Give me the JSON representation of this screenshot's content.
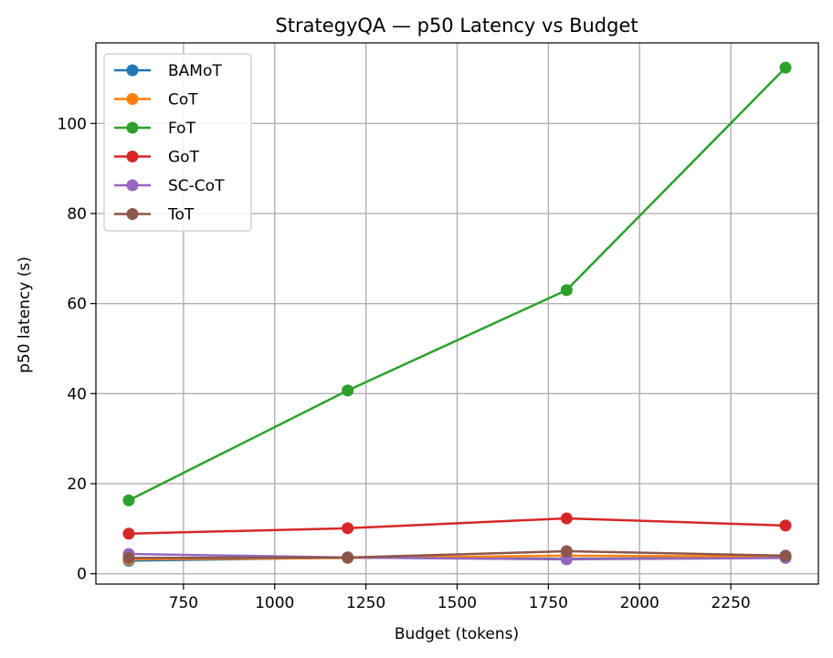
{
  "chart_data": {
    "type": "line",
    "title": "StrategyQA — p50 Latency vs Budget",
    "xlabel": "Budget (tokens)",
    "ylabel": "p50 latency (s)",
    "x": [
      600,
      1200,
      1800,
      2400
    ],
    "xlim": [
      510,
      2490
    ],
    "ylim": [
      -2.3,
      117.9
    ],
    "xticks": [
      750,
      1000,
      1250,
      1500,
      1750,
      2000,
      2250
    ],
    "yticks": [
      0,
      20,
      40,
      60,
      80,
      100
    ],
    "grid": true,
    "legend_position": "upper-left",
    "series": [
      {
        "name": "BAMoT",
        "color": "#1f77b4",
        "values": [
          2.9,
          3.6,
          3.3,
          3.6
        ]
      },
      {
        "name": "CoT",
        "color": "#ff7f0e",
        "values": [
          3.2,
          3.5,
          4.0,
          3.8
        ]
      },
      {
        "name": "FoT",
        "color": "#2ca02c",
        "values": [
          16.3,
          40.7,
          63.0,
          112.4
        ]
      },
      {
        "name": "GoT",
        "color": "#d62728",
        "values": [
          8.9,
          10.1,
          12.3,
          10.7
        ]
      },
      {
        "name": "SC-CoT",
        "color": "#9467bd",
        "values": [
          4.4,
          3.6,
          3.2,
          3.5
        ]
      },
      {
        "name": "ToT",
        "color": "#8c564b",
        "values": [
          3.5,
          3.6,
          5.0,
          4.0
        ]
      }
    ]
  }
}
